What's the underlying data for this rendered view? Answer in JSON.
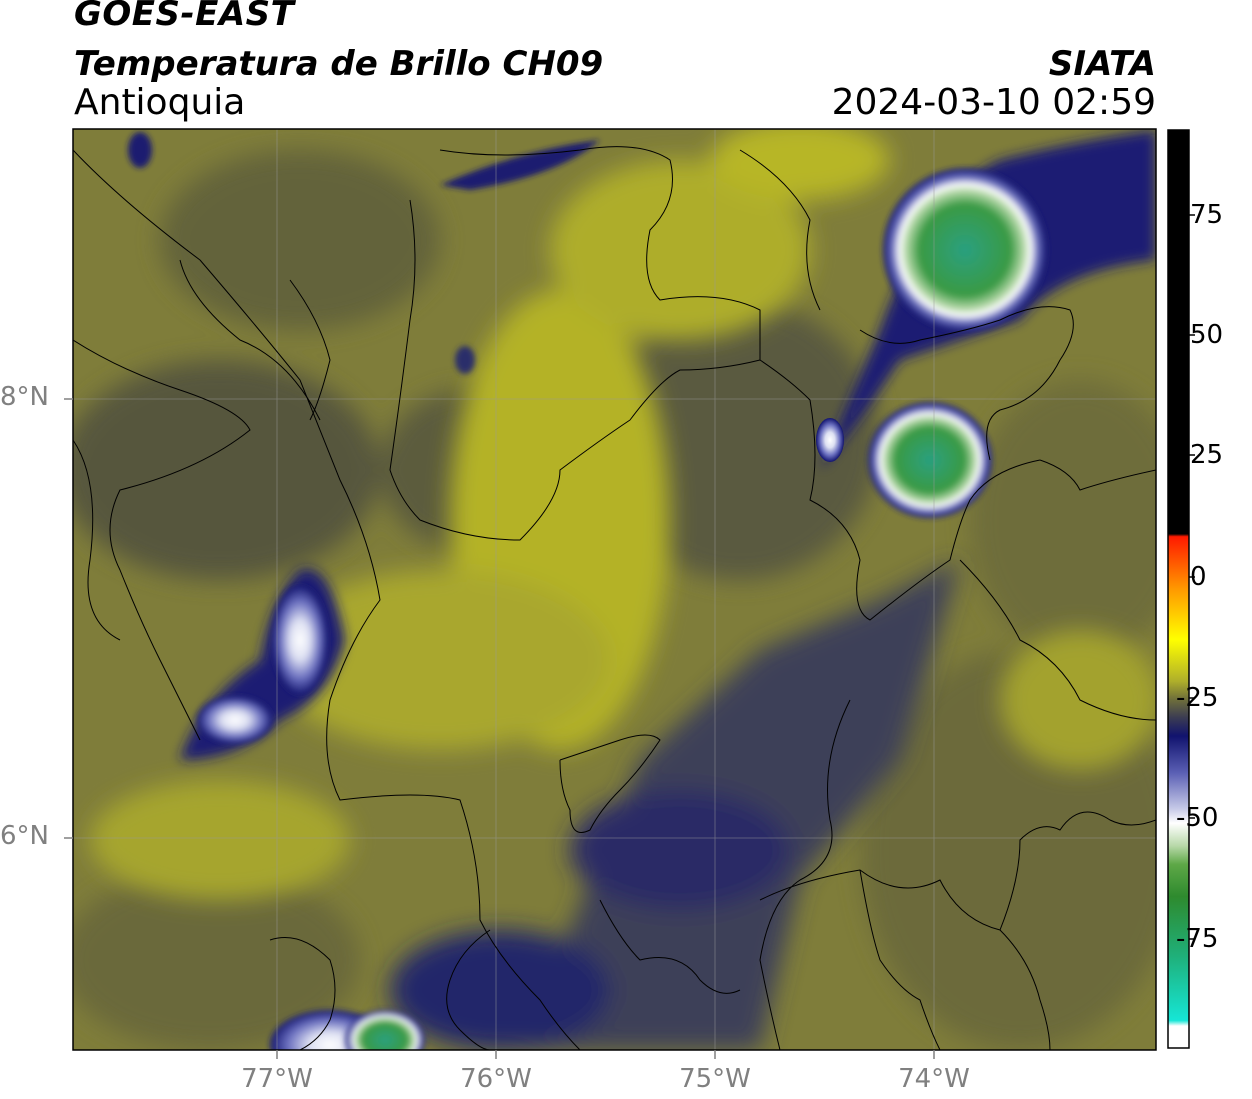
{
  "header": {
    "satellite": "GOES-EAST",
    "product": "Temperatura de Brillo CH09",
    "region": "Antioquia",
    "agency": "SIATA",
    "datetime": "2024-03-10 02:59"
  },
  "map": {
    "lat_labels": [
      "8°N",
      "6°N"
    ],
    "lon_labels": [
      "77°W",
      "76°W",
      "75°W",
      "74°W"
    ]
  },
  "colorbar": {
    "ticks": [
      "75",
      "50",
      "25",
      "0",
      "-25",
      "-50",
      "-75"
    ],
    "colors": {
      "black": "#000000",
      "red": "#ff1a00",
      "orange": "#ff9900",
      "yellow": "#ffff00",
      "olive": "#7d7c3b",
      "navy": "#11136e",
      "white": "#ffffff",
      "green": "#2e8a2e",
      "cyan": "#16e6d6"
    }
  }
}
